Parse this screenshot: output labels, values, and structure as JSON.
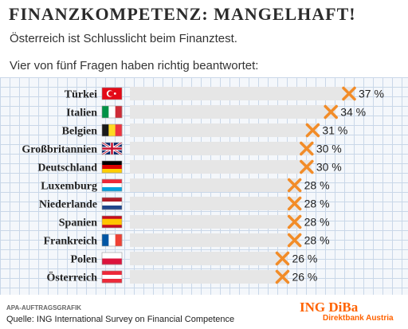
{
  "header": {
    "title": "FINANZKOMPETENZ: MANGELHAFT!",
    "subtitle": "Österreich ist Schlusslicht beim Finanztest.",
    "intro": "Vier von fünf Fragen haben richtig beantwortet:"
  },
  "footer": {
    "agency": "APA-AUFTRAGSGRAFIK",
    "source": "Quelle: ING International Survey on Financial Competence",
    "brand": "ING DiBa",
    "brand_sub": "Direktbank Austria"
  },
  "colors": {
    "bar": "#e6e6e6",
    "marker": "#f28c28",
    "brand": "#ff6200",
    "grid": "#c9d7e8"
  },
  "chart_data": {
    "type": "bar",
    "orientation": "horizontal",
    "unit": "%",
    "categories": [
      "Türkei",
      "Italien",
      "Belgien",
      "Großbritannien",
      "Deutschland",
      "Luxemburg",
      "Niederlande",
      "Spanien",
      "Frankreich",
      "Polen",
      "Österreich"
    ],
    "values": [
      37,
      34,
      31,
      30,
      30,
      28,
      28,
      28,
      28,
      26,
      26
    ],
    "value_labels": [
      "37 %",
      "34 %",
      "31 %",
      "30 %",
      "30 %",
      "28 %",
      "28 %",
      "28 %",
      "28 %",
      "26 %",
      "26 %"
    ],
    "flags": [
      "tr",
      "it",
      "be",
      "gb",
      "de",
      "lu",
      "nl",
      "es",
      "fr",
      "pl",
      "at"
    ],
    "marker": "cross-icon",
    "xlim": [
      0,
      37
    ],
    "grid": true
  }
}
